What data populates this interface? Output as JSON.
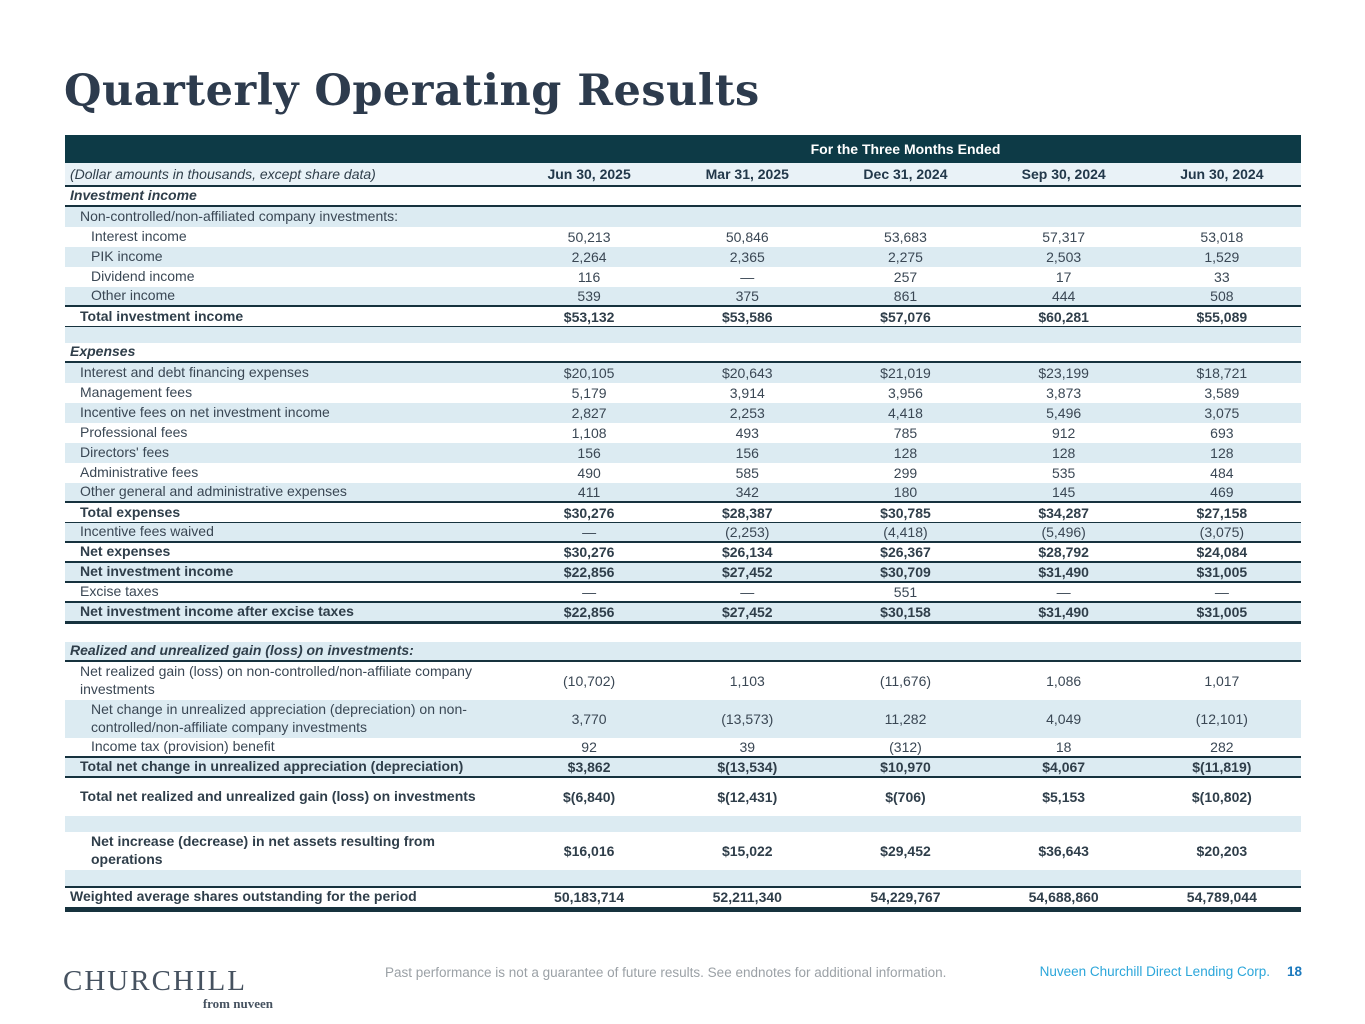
{
  "page": {
    "title": "Quarterly Operating Results"
  },
  "table": {
    "banner": "For the Three Months Ended",
    "note": "(Dollar amounts in thousands, except share data)",
    "columns": [
      "Jun 30, 2025",
      "Mar 31, 2025",
      "Dec 31, 2024",
      "Sep 30, 2024",
      "Jun 30, 2024"
    ],
    "rows": [
      {
        "label": "Investment income",
        "values": [],
        "kind": "section",
        "indent": 0,
        "shade": false,
        "rule_below": "thick"
      },
      {
        "label": "Non-controlled/non-affiliated company investments:",
        "values": [],
        "kind": "item",
        "indent": 1,
        "shade": true,
        "rule_below": "none"
      },
      {
        "label": "Interest income",
        "values": [
          "50,213",
          "50,846",
          "53,683",
          "57,317",
          "53,018"
        ],
        "kind": "item",
        "indent": 2,
        "shade": false,
        "rule_below": "none"
      },
      {
        "label": "PIK income",
        "values": [
          "2,264",
          "2,365",
          "2,275",
          "2,503",
          "1,529"
        ],
        "kind": "item",
        "indent": 2,
        "shade": true,
        "rule_below": "none"
      },
      {
        "label": "Dividend income",
        "values": [
          "116",
          "—",
          "257",
          "17",
          "33"
        ],
        "kind": "item",
        "indent": 2,
        "shade": false,
        "rule_below": "none"
      },
      {
        "label": "Other income",
        "values": [
          "539",
          "375",
          "861",
          "444",
          "508"
        ],
        "kind": "item",
        "indent": 2,
        "shade": true,
        "rule_below": "thick"
      },
      {
        "label": "Total investment income",
        "values": [
          "$53,132",
          "$53,586",
          "$57,076",
          "$60,281",
          "$55,089"
        ],
        "kind": "total",
        "indent": 1,
        "shade": false,
        "rule_below": "thin"
      },
      {
        "label": "",
        "values": [],
        "kind": "spacer",
        "indent": 0,
        "shade": true,
        "rule_below": "none"
      },
      {
        "label": "Expenses",
        "values": [],
        "kind": "section",
        "indent": 0,
        "shade": false,
        "rule_below": "thick"
      },
      {
        "label": "Interest and debt financing expenses",
        "values": [
          "$20,105",
          "$20,643",
          "$21,019",
          "$23,199",
          "$18,721"
        ],
        "kind": "item",
        "indent": 1,
        "shade": true,
        "rule_below": "none"
      },
      {
        "label": "Management fees",
        "values": [
          "5,179",
          "3,914",
          "3,956",
          "3,873",
          "3,589"
        ],
        "kind": "item",
        "indent": 1,
        "shade": false,
        "rule_below": "none"
      },
      {
        "label": "Incentive fees on net investment income",
        "values": [
          "2,827",
          "2,253",
          "4,418",
          "5,496",
          "3,075"
        ],
        "kind": "item",
        "indent": 1,
        "shade": true,
        "rule_below": "none"
      },
      {
        "label": "Professional fees",
        "values": [
          "1,108",
          "493",
          "785",
          "912",
          "693"
        ],
        "kind": "item",
        "indent": 1,
        "shade": false,
        "rule_below": "none"
      },
      {
        "label": "Directors' fees",
        "values": [
          "156",
          "156",
          "128",
          "128",
          "128"
        ],
        "kind": "item",
        "indent": 1,
        "shade": true,
        "rule_below": "none"
      },
      {
        "label": "Administrative fees",
        "values": [
          "490",
          "585",
          "299",
          "535",
          "484"
        ],
        "kind": "item",
        "indent": 1,
        "shade": false,
        "rule_below": "none"
      },
      {
        "label": "Other general and administrative expenses",
        "values": [
          "411",
          "342",
          "180",
          "145",
          "469"
        ],
        "kind": "item",
        "indent": 1,
        "shade": true,
        "rule_below": "thick"
      },
      {
        "label": "Total expenses",
        "values": [
          "$30,276",
          "$28,387",
          "$30,785",
          "$34,287",
          "$27,158"
        ],
        "kind": "total",
        "indent": 1,
        "shade": false,
        "rule_below": "thin"
      },
      {
        "label": "Incentive fees waived",
        "values": [
          "—",
          "(2,253)",
          "(4,418)",
          "(5,496)",
          "(3,075)"
        ],
        "kind": "item",
        "indent": 1,
        "shade": true,
        "rule_below": "thick"
      },
      {
        "label": "Net expenses",
        "values": [
          "$30,276",
          "$26,134",
          "$26,367",
          "$28,792",
          "$24,084"
        ],
        "kind": "total",
        "indent": 1,
        "shade": false,
        "rule_below": "thick"
      },
      {
        "label": "Net investment income",
        "values": [
          "$22,856",
          "$27,452",
          "$30,709",
          "$31,490",
          "$31,005"
        ],
        "kind": "total",
        "indent": 1,
        "shade": true,
        "rule_below": "thick"
      },
      {
        "label": "Excise taxes",
        "values": [
          "—",
          "—",
          "551",
          "—",
          "—"
        ],
        "kind": "item",
        "indent": 1,
        "shade": false,
        "rule_below": "thick"
      },
      {
        "label": "Net investment income after excise taxes",
        "values": [
          "$22,856",
          "$27,452",
          "$30,158",
          "$31,490",
          "$31,005"
        ],
        "kind": "total",
        "indent": 1,
        "shade": true,
        "rule_below": "heavy"
      },
      {
        "label": "",
        "values": [],
        "kind": "gap",
        "indent": 0,
        "shade": false,
        "rule_below": "none"
      },
      {
        "label": "Realized and unrealized gain (loss) on investments:",
        "values": [],
        "kind": "section",
        "indent": 0,
        "shade": true,
        "rule_below": "thick"
      },
      {
        "label": "Net realized gain (loss) on non-controlled/non-affiliate company investments",
        "values": [
          "(10,702)",
          "1,103",
          "(11,676)",
          "1,086",
          "1,017"
        ],
        "kind": "item",
        "indent": 1,
        "shade": false,
        "rule_below": "none",
        "tall": true
      },
      {
        "label": "Net change in unrealized appreciation (depreciation) on non-controlled/non-affiliate company investments",
        "values": [
          "3,770",
          "(13,573)",
          "11,282",
          "4,049",
          "(12,101)"
        ],
        "kind": "item",
        "indent": 2,
        "shade": true,
        "rule_below": "none",
        "tall": true
      },
      {
        "label": "Income tax (provision) benefit",
        "values": [
          "92",
          "39",
          "(312)",
          "18",
          "282"
        ],
        "kind": "item",
        "indent": 2,
        "shade": false,
        "rule_below": "thick"
      },
      {
        "label": "Total net change in unrealized appreciation (depreciation)",
        "values": [
          "$3,862",
          "$(13,534)",
          "$10,970",
          "$4,067",
          "$(11,819)"
        ],
        "kind": "total",
        "indent": 1,
        "shade": true,
        "rule_below": "thick"
      },
      {
        "label": "Total net realized and unrealized gain (loss) on investments",
        "values": [
          "$(6,840)",
          "$(12,431)",
          "$(706)",
          "$5,153",
          "$(10,802)"
        ],
        "kind": "total",
        "indent": 1,
        "shade": false,
        "rule_below": "none",
        "tall": true
      },
      {
        "label": "",
        "values": [],
        "kind": "spacer",
        "indent": 0,
        "shade": true,
        "rule_below": "none"
      },
      {
        "label": "Net increase (decrease) in net assets resulting from operations",
        "values": [
          "$16,016",
          "$15,022",
          "$29,452",
          "$36,643",
          "$20,203"
        ],
        "kind": "total",
        "indent": 2,
        "shade": false,
        "rule_below": "none",
        "tall": true
      },
      {
        "label": "",
        "values": [],
        "kind": "spacer",
        "indent": 0,
        "shade": true,
        "rule_below": "none"
      },
      {
        "label": "Weighted average shares outstanding for the period",
        "values": [
          "50,183,714",
          "52,211,340",
          "54,229,767",
          "54,688,860",
          "54,789,044"
        ],
        "kind": "shares",
        "indent": 0,
        "shade": false,
        "rule_above": "thick",
        "rule_below": "bar"
      }
    ]
  },
  "footer": {
    "logo_primary": "CHURCHILL",
    "logo_secondary": "from nuveen",
    "disclaimer": "Past performance is not a guarantee of future results. See endnotes for additional information.",
    "company": "Nuveen Churchill Direct Lending Corp.",
    "page_number": "18"
  },
  "colors": {
    "header_band": "#0d3a46",
    "stripe": "#dcebf2",
    "rule": "#16323e",
    "accent_teal": "#2ba6da",
    "page_number_blue": "#1b79bd"
  }
}
